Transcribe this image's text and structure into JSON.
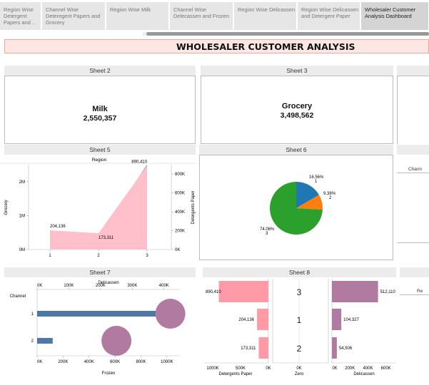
{
  "tabs": [
    {
      "label": "Region Wise Detergent Papers and ..",
      "active": false
    },
    {
      "label": "Channel Wise Deteregent Papers and Grocery",
      "active": false
    },
    {
      "label": "Region Wise Milk",
      "active": false
    },
    {
      "label": "Channel Wise Delecassen and Frozen",
      "active": false
    },
    {
      "label": "Region Wise Delicassen",
      "active": false
    },
    {
      "label": "Region Wise Delicassen and Detergent Paper",
      "active": false
    },
    {
      "label": "Wholesaler Customer Analysis Dashboard",
      "active": true
    }
  ],
  "dashboard": {
    "title": "WHOLESALER CUSTOMER ANALYSIS"
  },
  "sheets": {
    "sheet2": {
      "title": "Sheet 2",
      "label": "Milk",
      "value": "2,550,357"
    },
    "sheet3": {
      "title": "Grocery",
      "label": "Grocery",
      "value": "3,498,562",
      "heading": "Sheet 3"
    },
    "sheet5": {
      "title": "Sheet 5",
      "header": "Region"
    },
    "sheet6": {
      "title": "Sheet 6"
    },
    "sheet7": {
      "title": "Sheet 7",
      "top_axis_title": "Delicassen",
      "bottom_axis_title": "Frozen",
      "row_header": "Channel"
    },
    "sheet8": {
      "title": "Sheet 8"
    },
    "side_partial": {
      "channel": "Chann",
      "region": "Re"
    }
  },
  "chart_data": [
    {
      "type": "area",
      "title": "Sheet 5",
      "header": "Region",
      "categories": [
        "1",
        "2",
        "3"
      ],
      "series": [
        {
          "name": "Grocery",
          "values": [
            570000,
            360000,
            2500000
          ],
          "color": "#4e79a7"
        },
        {
          "name": "Detergents Paper",
          "values": [
            204136,
            173311,
            890410
          ],
          "color": "#ffc0cb"
        }
      ],
      "labels": [
        "204,136",
        "173,311",
        "890,410"
      ],
      "ylabel_left": "Grocery",
      "ylabel_right": "Detergents Paper",
      "yticks_left": [
        "0M",
        "1M",
        "2M"
      ],
      "ylim_left": [
        0,
        2500000
      ],
      "yticks_right": [
        "0K",
        "200K",
        "400K",
        "600K",
        "800K"
      ],
      "ylim_right": [
        0,
        900000
      ]
    },
    {
      "type": "pie",
      "title": "Sheet 6",
      "slices": [
        {
          "name": "1",
          "value": 16.56,
          "label": "16.56%",
          "color": "#1f77b4"
        },
        {
          "name": "2",
          "value": 9.38,
          "label": "9.38%",
          "color": "#ff7f0e"
        },
        {
          "name": "3",
          "value": 74.06,
          "label": "74.06%",
          "color": "#2ca02c"
        }
      ]
    },
    {
      "type": "bar",
      "title": "Sheet 7",
      "categories": [
        "1",
        "2"
      ],
      "row_header": "Channel",
      "series": [
        {
          "name": "Frozen",
          "values": [
            1000000,
            120000
          ],
          "color": "#4e79a7"
        },
        {
          "name": "Delicassen",
          "values": [
            420000,
            250000
          ],
          "color": "#b07aa1"
        }
      ],
      "xticks_top": [
        "0K",
        "100K",
        "200K",
        "300K",
        "400K"
      ],
      "xlabel_top": "Delicassen",
      "xlim_top": [
        0,
        450000
      ],
      "xticks_bottom": [
        "0K",
        "200K",
        "400K",
        "600K",
        "800K",
        "1000K"
      ],
      "xlabel_bottom": "Frozen",
      "xlim_bottom": [
        0,
        1100000
      ]
    },
    {
      "type": "bar",
      "title": "Sheet 8",
      "categories": [
        "3",
        "1",
        "2"
      ],
      "series": [
        {
          "name": "Detergents Paper",
          "values": [
            890410,
            204136,
            173311
          ],
          "labels": [
            "890,410",
            "204,136",
            "173,311"
          ],
          "color": "#ff9aa6"
        },
        {
          "name": "Delicassen",
          "values": [
            512110,
            104327,
            54506
          ],
          "labels": [
            "512,110",
            "104,327",
            "54,506"
          ],
          "color": "#b07aa1"
        }
      ],
      "xlabels": [
        "Detergents Paper",
        "Zero",
        "Delicassen"
      ],
      "xticks_left": [
        "1000K",
        "500K",
        "0K"
      ],
      "xlim_left": [
        0,
        1000000
      ],
      "xticks_mid": [
        "0K"
      ],
      "xticks_right": [
        "0K",
        "200K",
        "400K",
        "600K"
      ],
      "xlim_right": [
        0,
        650000
      ]
    }
  ]
}
